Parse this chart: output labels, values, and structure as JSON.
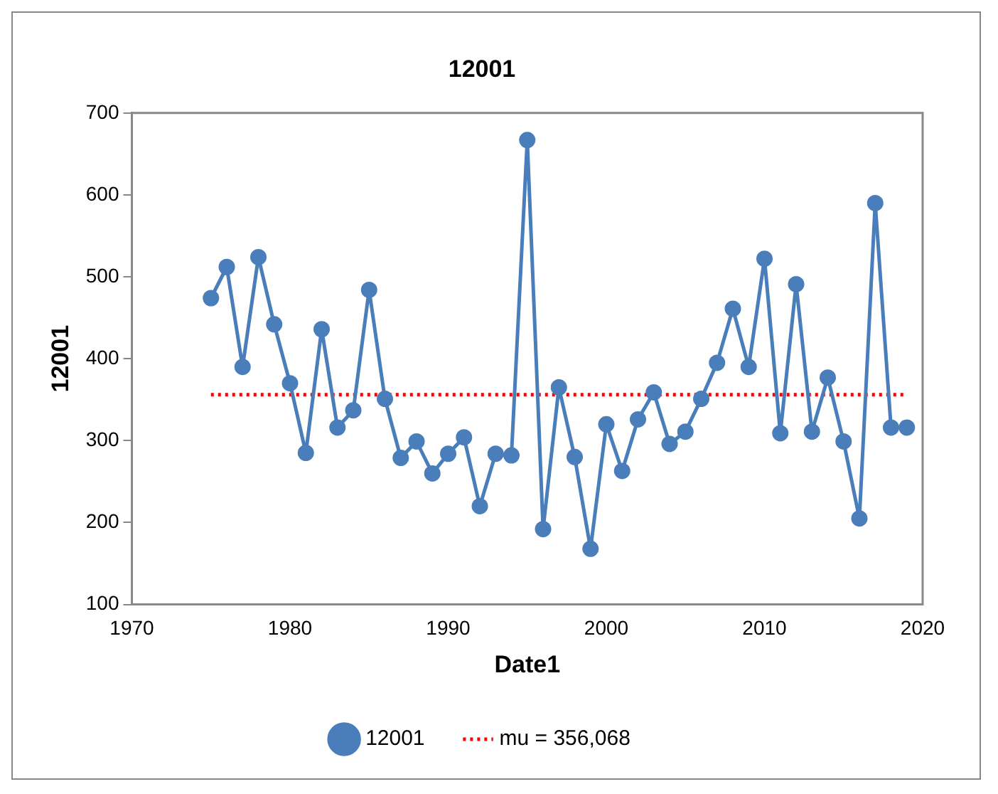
{
  "chart_data": {
    "type": "line",
    "title": "12001",
    "xlabel": "Date1",
    "ylabel": "12001",
    "xlim": [
      1970,
      2020
    ],
    "xticks": [
      1970,
      1980,
      1990,
      2000,
      2010,
      2020
    ],
    "ylim": [
      100,
      700
    ],
    "yticks": [
      100,
      200,
      300,
      400,
      500,
      600,
      700
    ],
    "grid": false,
    "legend": "bottom",
    "marker": "circle",
    "series": [
      {
        "name": "12001",
        "color": "#4a7ebb",
        "x": [
          1975,
          1976,
          1977,
          1978,
          1979,
          1980,
          1981,
          1982,
          1983,
          1984,
          1985,
          1986,
          1987,
          1988,
          1989,
          1990,
          1991,
          1992,
          1993,
          1994,
          1995,
          1996,
          1997,
          1998,
          1999,
          2000,
          2001,
          2002,
          2003,
          2004,
          2005,
          2006,
          2007,
          2008,
          2009,
          2010,
          2011,
          2012,
          2013,
          2014,
          2015,
          2016,
          2017,
          2018,
          2019
        ],
        "values": [
          474,
          512,
          390,
          524,
          442,
          370,
          285,
          436,
          316,
          337,
          484,
          351,
          279,
          299,
          260,
          284,
          304,
          220,
          284,
          282,
          667,
          192,
          365,
          280,
          168,
          320,
          263,
          326,
          359,
          296,
          311,
          351,
          395,
          461,
          390,
          522,
          309,
          491,
          311,
          377,
          299,
          205,
          590,
          316,
          316
        ]
      },
      {
        "name": "mu = 356,068",
        "color": "#ff0000",
        "type": "line",
        "marker": "none",
        "line_style": "dotted",
        "x": [
          1975,
          2019
        ],
        "values": [
          356.068,
          356.068
        ]
      }
    ]
  }
}
